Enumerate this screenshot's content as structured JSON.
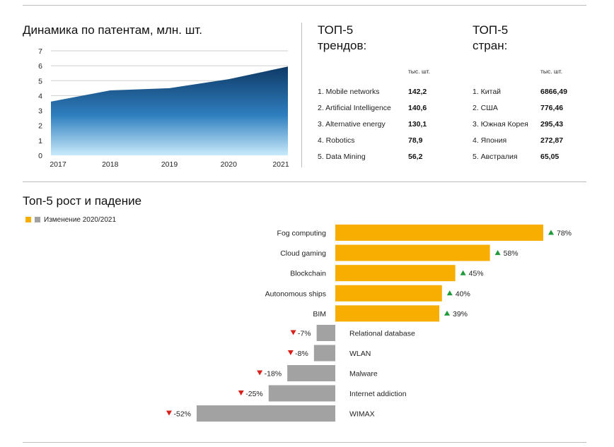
{
  "colors": {
    "area_top": "#0e3a66",
    "area_bottom": "#c9eafb",
    "growth_bar": "#f7ae00",
    "decline_bar": "#a2a2a2",
    "up_arrow": "#1f9a3a",
    "down_arrow": "#d9201b",
    "grid": "#cfcfcf"
  },
  "trends": {
    "title_line1": "ТОП-5",
    "title_line2": "трендов:",
    "unit": "тыс. шт.",
    "rows": [
      {
        "label": "1. Mobile networks",
        "value": "142,2"
      },
      {
        "label": "2. Artificial Intelligence",
        "value": "140,6"
      },
      {
        "label": "3. Alternative energy",
        "value": "130,1"
      },
      {
        "label": "4. Robotics",
        "value": "78,9"
      },
      {
        "label": "5. Data Mining",
        "value": "56,2"
      }
    ]
  },
  "countries": {
    "title_line1": "ТОП-5",
    "title_line2": "стран:",
    "unit": "тыс. шт.",
    "rows": [
      {
        "label": "1. Китай",
        "value": "6866,49"
      },
      {
        "label": "2. США",
        "value": "776,46"
      },
      {
        "label": "3. Южная Корея",
        "value": "295,43"
      },
      {
        "label": "4. Япония",
        "value": "272,87"
      },
      {
        "label": "5. Австралия",
        "value": "65,05"
      }
    ]
  },
  "chart_data": [
    {
      "type": "area",
      "title": "Динамика по патентам, млн. шт.",
      "x": [
        "2017",
        "2018",
        "2019",
        "2020",
        "2021"
      ],
      "values": [
        3.6,
        4.35,
        4.5,
        5.1,
        5.95
      ],
      "yticks": [
        0,
        1,
        2,
        3,
        4,
        5,
        6,
        7
      ],
      "ylim": [
        0,
        7
      ],
      "grid": true
    },
    {
      "type": "bar",
      "orientation": "horizontal",
      "title": "Топ-5 рост и падение",
      "legend": "Изменение 2020/2021",
      "legend_placement": "top-left",
      "xlim": [
        -52,
        78
      ],
      "growth": [
        {
          "label": "Fog computing",
          "value": 78,
          "display": "78%"
        },
        {
          "label": "Cloud gaming",
          "value": 58,
          "display": "58%"
        },
        {
          "label": "Blockchain",
          "value": 45,
          "display": "45%"
        },
        {
          "label": "Autonomous ships",
          "value": 40,
          "display": "40%"
        },
        {
          "label": "BIM",
          "value": 39,
          "display": "39%"
        }
      ],
      "decline": [
        {
          "label": "Relational database",
          "value": -7,
          "display": "-7%"
        },
        {
          "label": "WLAN",
          "value": -8,
          "display": "-8%"
        },
        {
          "label": "Malware",
          "value": -18,
          "display": "-18%"
        },
        {
          "label": "Internet addiction",
          "value": -25,
          "display": "-25%"
        },
        {
          "label": "WIMAX",
          "value": -52,
          "display": "-52%"
        }
      ]
    }
  ]
}
